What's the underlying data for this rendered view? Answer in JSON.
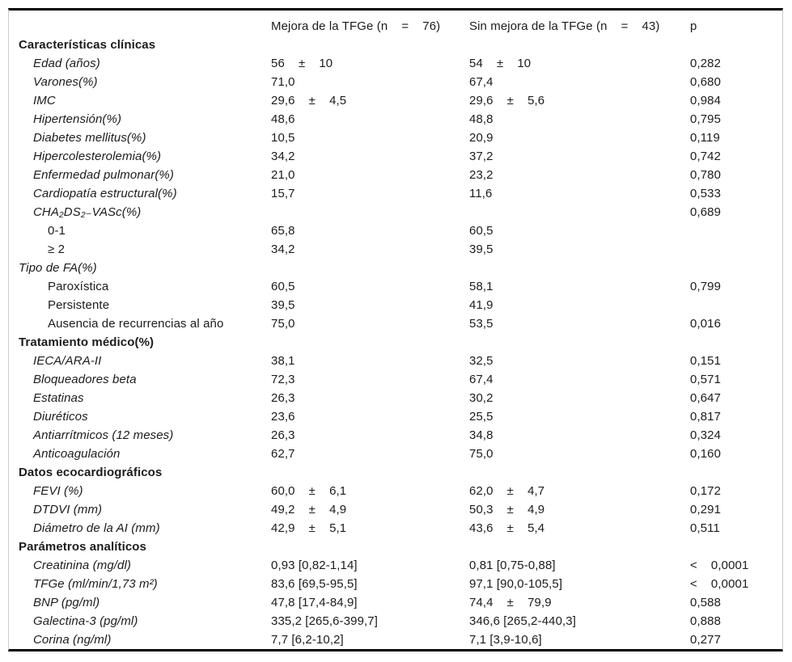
{
  "table": {
    "columns": [
      "",
      "Mejora de la TFGe (n    =    76)",
      "Sin mejora de la TFGe (n    =    43)",
      "p"
    ],
    "rows": [
      {
        "label": "Características clínicas",
        "indent": 0,
        "style": "bold",
        "g1": "",
        "g2": "",
        "p": ""
      },
      {
        "label": "Edad (años)",
        "indent": 1,
        "style": "italic",
        "g1": "56    ±    10",
        "g2": "54    ±    10",
        "p": "0,282"
      },
      {
        "label": "Varones(%)",
        "indent": 1,
        "style": "italic",
        "g1": "71,0",
        "g2": "67,4",
        "p": "0,680"
      },
      {
        "label": "IMC",
        "indent": 1,
        "style": "italic",
        "g1": "29,6    ±    4,5",
        "g2": "29,6    ±    5,6",
        "p": "0,984"
      },
      {
        "label": "Hipertensión(%)",
        "indent": 1,
        "style": "italic",
        "g1": "48,6",
        "g2": "48,8",
        "p": "0,795"
      },
      {
        "label": "Diabetes mellitus(%)",
        "indent": 1,
        "style": "italic",
        "g1": "10,5",
        "g2": "20,9",
        "p": "0,119"
      },
      {
        "label": "Hipercolesterolemia(%)",
        "indent": 1,
        "style": "italic",
        "g1": "34,2",
        "g2": "37,2",
        "p": "0,742"
      },
      {
        "label": "Enfermedad pulmonar(%)",
        "indent": 1,
        "style": "italic",
        "g1": "21,0",
        "g2": "23,2",
        "p": "0,780"
      },
      {
        "label": "Cardiopatía estructural(%)",
        "indent": 1,
        "style": "italic",
        "g1": "15,7",
        "g2": "11,6",
        "p": "0,533"
      },
      {
        "label": "CHA₂DS₂₋VASc(%)",
        "indent": 1,
        "style": "italic",
        "g1": "",
        "g2": "",
        "p": "0,689"
      },
      {
        "label": "0-1",
        "indent": 2,
        "style": "plain",
        "g1": "65,8",
        "g2": "60,5",
        "p": ""
      },
      {
        "label": "≥ 2",
        "indent": 2,
        "style": "plain",
        "g1": "34,2",
        "g2": "39,5",
        "p": ""
      },
      {
        "label": "Tipo de FA(%)",
        "indent": 0,
        "style": "italic",
        "g1": "",
        "g2": "",
        "p": ""
      },
      {
        "label": "Paroxística",
        "indent": 2,
        "style": "plain",
        "g1": "60,5",
        "g2": "58,1",
        "p": "0,799"
      },
      {
        "label": "Persistente",
        "indent": 2,
        "style": "plain",
        "g1": "39,5",
        "g2": "41,9",
        "p": ""
      },
      {
        "label": "Ausencia de recurrencias al año",
        "indent": 2,
        "style": "plain",
        "g1": "75,0",
        "g2": "53,5",
        "p": "0,016"
      },
      {
        "label": "Tratamiento médico(%)",
        "indent": 0,
        "style": "bold",
        "g1": "",
        "g2": "",
        "p": ""
      },
      {
        "label": "IECA/ARA-II",
        "indent": 1,
        "style": "italic",
        "g1": "38,1",
        "g2": "32,5",
        "p": "0,151"
      },
      {
        "label": "Bloqueadores beta",
        "indent": 1,
        "style": "italic",
        "g1": "72,3",
        "g2": "67,4",
        "p": "0,571"
      },
      {
        "label": "Estatinas",
        "indent": 1,
        "style": "italic",
        "g1": "26,3",
        "g2": "30,2",
        "p": "0,647"
      },
      {
        "label": "Diuréticos",
        "indent": 1,
        "style": "italic",
        "g1": "23,6",
        "g2": "25,5",
        "p": "0,817"
      },
      {
        "label": "Antiarrítmicos (12 meses)",
        "indent": 1,
        "style": "italic",
        "g1": "26,3",
        "g2": "34,8",
        "p": "0,324"
      },
      {
        "label": "Anticoagulación",
        "indent": 1,
        "style": "italic",
        "g1": "62,7",
        "g2": "75,0",
        "p": "0,160"
      },
      {
        "label": "Datos ecocardiográficos",
        "indent": 0,
        "style": "bold",
        "g1": "",
        "g2": "",
        "p": ""
      },
      {
        "label": "FEVI (%)",
        "indent": 1,
        "style": "italic",
        "g1": "60,0    ±    6,1",
        "g2": "62,0    ±    4,7",
        "p": "0,172"
      },
      {
        "label": "DTDVI (mm)",
        "indent": 1,
        "style": "italic",
        "g1": "49,2    ±    4,9",
        "g2": "50,3    ±    4,9",
        "p": "0,291"
      },
      {
        "label": "Diámetro de la AI (mm)",
        "indent": 1,
        "style": "italic",
        "g1": "42,9    ±    5,1",
        "g2": "43,6    ±    5,4",
        "p": "0,511"
      },
      {
        "label": "Parámetros analíticos",
        "indent": 0,
        "style": "bold",
        "g1": "",
        "g2": "",
        "p": ""
      },
      {
        "label": "Creatinina (mg/dl)",
        "indent": 1,
        "style": "italic",
        "g1": "0,93 [0,82-1,14]",
        "g2": "0,81 [0,75-0,88]",
        "p": "<    0,0001"
      },
      {
        "label": "TFGe (ml/min/1,73 m²)",
        "indent": 1,
        "style": "italic",
        "g1": "83,6 [69,5-95,5]",
        "g2": "97,1 [90,0-105,5]",
        "p": "<    0,0001"
      },
      {
        "label": "BNP (pg/ml)",
        "indent": 1,
        "style": "italic",
        "g1": "47,8 [17,4-84,9]",
        "g2": "74,4    ±    79,9",
        "p": "0,588"
      },
      {
        "label": "Galectina-3 (pg/ml)",
        "indent": 1,
        "style": "italic",
        "g1": "335,2 [265,6-399,7]",
        "g2": "346,6 [265,2-440,3]",
        "p": "0,888"
      },
      {
        "label": "Corina (ng/ml)",
        "indent": 1,
        "style": "italic",
        "g1": "7,7 [6,2-10,2]",
        "g2": "7,1 [3,9-10,6]",
        "p": "0,277"
      }
    ]
  }
}
